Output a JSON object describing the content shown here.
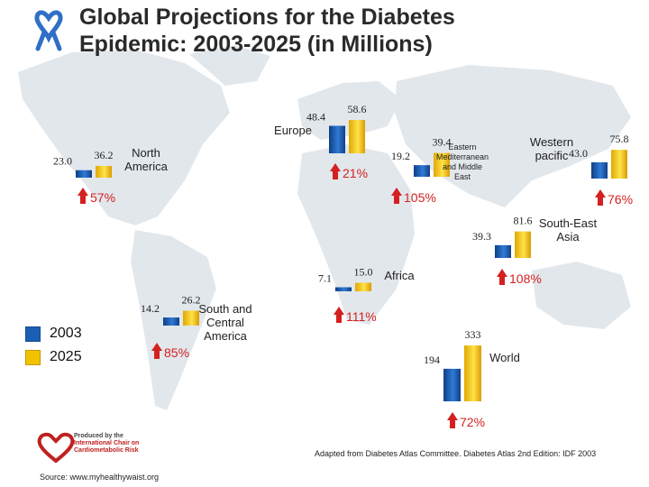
{
  "title": {
    "line1": "Global Projections for the Diabetes",
    "line2": "Epidemic: 2003-2025 (in Millions)"
  },
  "legend": {
    "items": [
      {
        "label": "2003",
        "color": "#1a5fb4"
      },
      {
        "label": "2025",
        "color": "#f2c200"
      }
    ]
  },
  "chart_data": {
    "type": "bar",
    "title": "Global Projections for the Diabetes Epidemic: 2003-2025 (in Millions)",
    "categories": [
      "North America",
      "Europe",
      "Eastern Mediterranean and Middle East",
      "Western pacific",
      "South-East Asia",
      "Africa",
      "South and Central America",
      "World"
    ],
    "series": [
      {
        "name": "2003",
        "values": [
          23.0,
          48.4,
          19.2,
          43.0,
          39.3,
          7.1,
          14.2,
          194
        ]
      },
      {
        "name": "2025",
        "values": [
          36.2,
          58.6,
          39.4,
          75.8,
          81.6,
          15.0,
          26.2,
          333
        ]
      }
    ],
    "increase": [
      "57%",
      "21%",
      "105%",
      "76%",
      "108%",
      "111%",
      "85%",
      "72%"
    ],
    "value_labels": {
      "2003": [
        "23.0",
        "48.4",
        "19.2",
        "43.0",
        "39.3",
        "7.1",
        "14.2",
        "194"
      ],
      "2025": [
        "36.2",
        "58.6",
        "39.4",
        "75.8",
        "81.6",
        "15.0",
        "26.2",
        "333"
      ]
    },
    "region_labels": [
      [
        "North",
        "America"
      ],
      [
        "Europe"
      ],
      [
        "Eastern",
        "Mediterranean",
        "and Middle",
        "East"
      ],
      [
        "Western",
        "pacific"
      ],
      [
        "South-East",
        "Asia"
      ],
      [
        "Africa"
      ],
      [
        "South and",
        "Central",
        "America"
      ],
      [
        "World"
      ]
    ]
  },
  "citation": "Adapted from Diabetes Atlas Committee. Diabetes Atlas 2nd Edition: IDF 2003",
  "source": "Source: www.myhealthywaist.org",
  "logo": {
    "line1": "Produced by the",
    "line2": "International Chair on",
    "line3": "Cardiometabolic Risk"
  },
  "colors": {
    "bar_2003": "#1a5fb4",
    "bar_2025": "#f2c200",
    "arrow": "#d42020",
    "map_land": "#e2e7ec",
    "map_sea": "#ffffff"
  }
}
